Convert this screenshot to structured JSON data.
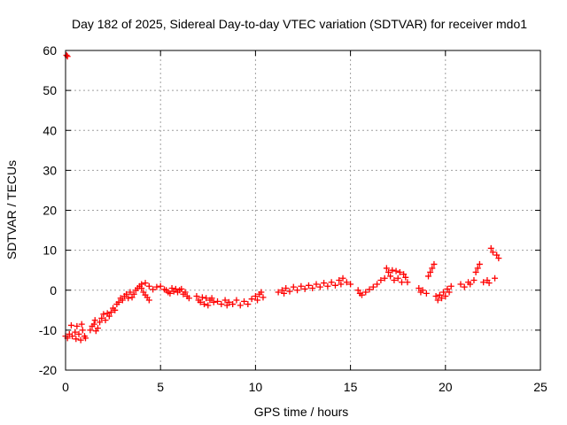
{
  "chart_data": {
    "type": "scatter",
    "title": "Day 182 of 2025, Sidereal Day-to-day VTEC variation (SDTVAR) for receiver mdo1",
    "xlabel": "GPS time / hours",
    "ylabel": "SDTVAR / TECUs",
    "xlim": [
      0,
      25
    ],
    "ylim": [
      -20,
      60
    ],
    "xticks": [
      "0",
      "5",
      "10",
      "15",
      "20",
      "25"
    ],
    "yticks": [
      "-20",
      "-10",
      "0",
      "10",
      "20",
      "30",
      "40",
      "50",
      "60"
    ],
    "grid": true,
    "marker": "+",
    "series_color": "#ff0000",
    "series": [
      {
        "name": "SDTVAR",
        "points": [
          [
            0.05,
            58.8
          ],
          [
            0.1,
            58.5
          ],
          [
            0.0,
            -11.5
          ],
          [
            0.1,
            -12.0
          ],
          [
            0.2,
            -11.0
          ],
          [
            0.3,
            -8.8
          ],
          [
            0.35,
            -11.5
          ],
          [
            0.5,
            -10.5
          ],
          [
            0.55,
            -12.2
          ],
          [
            0.6,
            -9.0
          ],
          [
            0.7,
            -11.0
          ],
          [
            0.8,
            -12.5
          ],
          [
            0.85,
            -8.5
          ],
          [
            0.9,
            -10.0
          ],
          [
            1.0,
            -11.5
          ],
          [
            1.05,
            -12.0
          ],
          [
            1.3,
            -10.0
          ],
          [
            1.4,
            -9.0
          ],
          [
            1.5,
            -8.5
          ],
          [
            1.55,
            -7.5
          ],
          [
            1.6,
            -10.2
          ],
          [
            1.7,
            -9.5
          ],
          [
            1.8,
            -8.0
          ],
          [
            1.9,
            -7.0
          ],
          [
            2.0,
            -6.0
          ],
          [
            2.1,
            -7.5
          ],
          [
            2.2,
            -5.8
          ],
          [
            2.3,
            -6.5
          ],
          [
            2.4,
            -5.5
          ],
          [
            2.5,
            -4.5
          ],
          [
            2.6,
            -5.0
          ],
          [
            2.7,
            -3.5
          ],
          [
            2.8,
            -3.0
          ],
          [
            2.9,
            -2.0
          ],
          [
            3.0,
            -2.5
          ],
          [
            3.1,
            -1.5
          ],
          [
            3.2,
            -1.0
          ],
          [
            3.3,
            -2.0
          ],
          [
            3.4,
            -0.5
          ],
          [
            3.5,
            -1.8
          ],
          [
            3.6,
            -1.0
          ],
          [
            3.7,
            0.0
          ],
          [
            3.8,
            0.5
          ],
          [
            3.9,
            1.0
          ],
          [
            4.0,
            0.5
          ],
          [
            4.1,
            -0.5
          ],
          [
            4.2,
            -1.2
          ],
          [
            4.3,
            -1.8
          ],
          [
            4.4,
            -2.5
          ],
          [
            4.0,
            1.5
          ],
          [
            4.2,
            1.8
          ],
          [
            4.4,
            1.0
          ],
          [
            4.6,
            0.2
          ],
          [
            4.8,
            0.8
          ],
          [
            5.0,
            1.0
          ],
          [
            5.2,
            0.2
          ],
          [
            5.3,
            0.0
          ],
          [
            5.4,
            -0.5
          ],
          [
            5.5,
            -0.8
          ],
          [
            5.6,
            0.5
          ],
          [
            5.7,
            -0.3
          ],
          [
            5.8,
            0.3
          ],
          [
            5.9,
            -0.5
          ],
          [
            6.0,
            0.0
          ],
          [
            6.1,
            0.3
          ],
          [
            6.2,
            -1.0
          ],
          [
            6.3,
            -0.5
          ],
          [
            6.4,
            -1.5
          ],
          [
            6.5,
            -2.0
          ],
          [
            6.9,
            -1.5
          ],
          [
            7.0,
            -2.5
          ],
          [
            7.1,
            -3.0
          ],
          [
            7.2,
            -1.8
          ],
          [
            7.3,
            -3.5
          ],
          [
            7.4,
            -2.0
          ],
          [
            7.5,
            -3.8
          ],
          [
            7.6,
            -2.5
          ],
          [
            7.7,
            -2.0
          ],
          [
            7.8,
            -3.0
          ],
          [
            8.0,
            -2.8
          ],
          [
            8.2,
            -3.5
          ],
          [
            8.4,
            -2.5
          ],
          [
            8.5,
            -3.8
          ],
          [
            8.6,
            -3.0
          ],
          [
            8.8,
            -3.5
          ],
          [
            9.0,
            -2.5
          ],
          [
            9.2,
            -3.8
          ],
          [
            9.4,
            -2.8
          ],
          [
            9.6,
            -3.5
          ],
          [
            9.8,
            -2.2
          ],
          [
            10.0,
            -1.5
          ],
          [
            10.1,
            -2.5
          ],
          [
            10.2,
            -1.0
          ],
          [
            10.3,
            -0.5
          ],
          [
            10.4,
            -1.8
          ],
          [
            11.2,
            -0.5
          ],
          [
            11.4,
            0.0
          ],
          [
            11.5,
            -0.8
          ],
          [
            11.6,
            0.5
          ],
          [
            11.8,
            -0.3
          ],
          [
            12.0,
            0.8
          ],
          [
            12.2,
            0.0
          ],
          [
            12.4,
            1.0
          ],
          [
            12.6,
            0.3
          ],
          [
            12.8,
            1.2
          ],
          [
            13.0,
            0.5
          ],
          [
            13.2,
            1.5
          ],
          [
            13.4,
            0.8
          ],
          [
            13.6,
            1.8
          ],
          [
            13.8,
            1.0
          ],
          [
            14.0,
            2.0
          ],
          [
            14.2,
            1.2
          ],
          [
            14.4,
            2.5
          ],
          [
            14.5,
            1.5
          ],
          [
            14.6,
            3.0
          ],
          [
            14.8,
            2.0
          ],
          [
            15.0,
            1.5
          ],
          [
            15.4,
            0.0
          ],
          [
            15.5,
            -0.8
          ],
          [
            15.6,
            -1.2
          ],
          [
            15.8,
            -0.5
          ],
          [
            16.0,
            0.2
          ],
          [
            16.2,
            0.8
          ],
          [
            16.4,
            1.5
          ],
          [
            16.6,
            2.5
          ],
          [
            16.8,
            3.0
          ],
          [
            16.9,
            5.5
          ],
          [
            17.0,
            4.5
          ],
          [
            17.1,
            3.5
          ],
          [
            17.2,
            5.0
          ],
          [
            17.3,
            2.5
          ],
          [
            17.4,
            4.8
          ],
          [
            17.5,
            3.0
          ],
          [
            17.6,
            4.5
          ],
          [
            17.7,
            2.0
          ],
          [
            17.8,
            4.0
          ],
          [
            17.9,
            3.2
          ],
          [
            18.0,
            2.0
          ],
          [
            18.6,
            0.5
          ],
          [
            18.7,
            -0.5
          ],
          [
            18.8,
            0.0
          ],
          [
            19.0,
            -0.8
          ],
          [
            19.1,
            3.5
          ],
          [
            19.2,
            4.5
          ],
          [
            19.3,
            5.5
          ],
          [
            19.4,
            6.5
          ],
          [
            19.5,
            -1.5
          ],
          [
            19.6,
            -2.5
          ],
          [
            19.7,
            -1.2
          ],
          [
            19.8,
            -2.0
          ],
          [
            19.9,
            -0.5
          ],
          [
            20.0,
            -1.5
          ],
          [
            20.1,
            0.3
          ],
          [
            20.2,
            -0.5
          ],
          [
            20.3,
            1.0
          ],
          [
            20.8,
            1.5
          ],
          [
            21.0,
            0.8
          ],
          [
            21.2,
            2.0
          ],
          [
            21.3,
            1.5
          ],
          [
            21.5,
            2.5
          ],
          [
            21.6,
            4.5
          ],
          [
            21.7,
            5.5
          ],
          [
            21.8,
            6.5
          ],
          [
            22.0,
            2.0
          ],
          [
            22.2,
            2.5
          ],
          [
            22.3,
            1.8
          ],
          [
            22.4,
            10.5
          ],
          [
            22.5,
            9.5
          ],
          [
            22.6,
            3.0
          ],
          [
            22.7,
            8.8
          ],
          [
            22.8,
            8.0
          ]
        ]
      }
    ]
  }
}
